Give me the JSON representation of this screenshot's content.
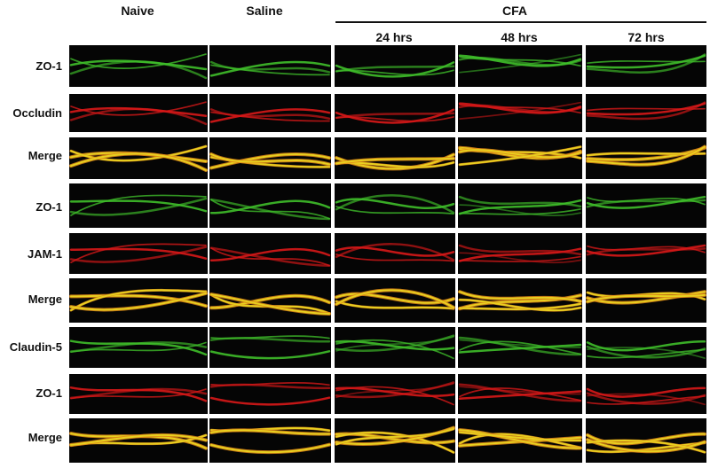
{
  "figure": {
    "columns": [
      "Naive",
      "Saline",
      "24 hrs",
      "48 hrs",
      "72 hrs"
    ],
    "group_header": "CFA",
    "row_labels": [
      "ZO-1",
      "Occludin",
      "Merge",
      "ZO-1",
      "JAM-1",
      "Merge",
      "Claudin-5",
      "ZO-1",
      "Merge"
    ],
    "colors": {
      "green": "#3fbf2a",
      "red": "#d81818",
      "yellow": "#e8d020",
      "orange": "#e08a18",
      "background": "#050505"
    }
  }
}
